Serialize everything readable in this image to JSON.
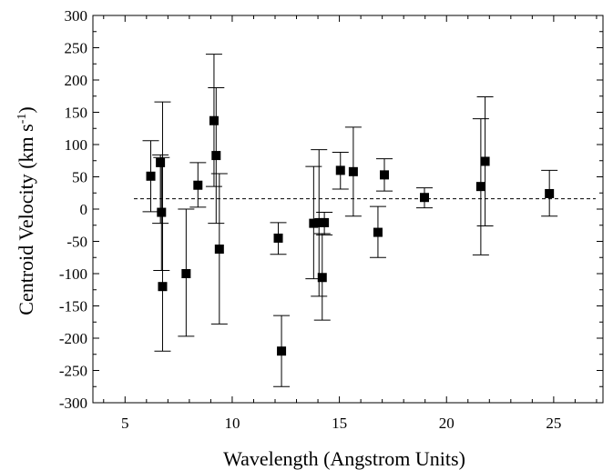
{
  "chart_data": {
    "type": "scatter",
    "title": "",
    "xlabel": "Wavelength (Angstrom Units)",
    "ylabel_main": "Centroid Velocity (km s",
    "ylabel_sup": "-1",
    "ylabel_close": ")",
    "xlim": [
      3.5,
      27.3
    ],
    "ylim": [
      -300,
      300
    ],
    "x_ticks": [
      5,
      10,
      15,
      20,
      25
    ],
    "y_ticks": [
      -300,
      -250,
      -200,
      -150,
      -100,
      -50,
      0,
      50,
      100,
      150,
      200,
      250,
      300
    ],
    "reference_line": {
      "y": 16,
      "style": "dashed"
    },
    "grid": false,
    "legend": "none",
    "marker": "filled-square",
    "series": [
      {
        "points": [
          {
            "x": 6.2,
            "y": 51,
            "low": -4,
            "high": 106
          },
          {
            "x": 6.65,
            "y": 72,
            "low": -22,
            "high": 84
          },
          {
            "x": 6.7,
            "y": -5,
            "low": -95,
            "high": 80
          },
          {
            "x": 6.75,
            "y": -120,
            "low": -220,
            "high": 166
          },
          {
            "x": 7.85,
            "y": -100,
            "low": -197,
            "high": 0
          },
          {
            "x": 8.4,
            "y": 37,
            "low": 3,
            "high": 72
          },
          {
            "x": 9.15,
            "y": 137,
            "low": 35,
            "high": 240
          },
          {
            "x": 9.25,
            "y": 83,
            "low": -22,
            "high": 188
          },
          {
            "x": 9.4,
            "y": -62,
            "low": -178,
            "high": 55
          },
          {
            "x": 12.15,
            "y": -45,
            "low": -70,
            "high": -21
          },
          {
            "x": 12.3,
            "y": -220,
            "low": -275,
            "high": -165
          },
          {
            "x": 13.8,
            "y": -22,
            "low": -108,
            "high": 66
          },
          {
            "x": 14.05,
            "y": -21,
            "low": -135,
            "high": 92
          },
          {
            "x": 14.2,
            "y": -106,
            "low": -172,
            "high": -38
          },
          {
            "x": 14.3,
            "y": -21,
            "low": -40,
            "high": -5
          },
          {
            "x": 15.05,
            "y": 60,
            "low": 31,
            "high": 88
          },
          {
            "x": 15.65,
            "y": 58,
            "low": -11,
            "high": 127
          },
          {
            "x": 16.8,
            "y": -36,
            "low": -75,
            "high": 4
          },
          {
            "x": 17.1,
            "y": 53,
            "low": 28,
            "high": 78
          },
          {
            "x": 18.97,
            "y": 18,
            "low": 2,
            "high": 33
          },
          {
            "x": 21.6,
            "y": 35,
            "low": -71,
            "high": 140
          },
          {
            "x": 21.8,
            "y": 74,
            "low": -26,
            "high": 174
          },
          {
            "x": 24.8,
            "y": 24,
            "low": -11,
            "high": 60
          }
        ]
      }
    ]
  }
}
